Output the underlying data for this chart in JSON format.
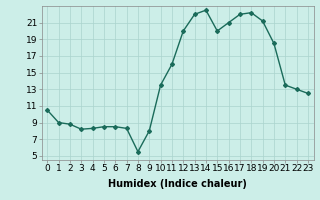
{
  "x": [
    0,
    1,
    2,
    3,
    4,
    5,
    6,
    7,
    8,
    9,
    10,
    11,
    12,
    13,
    14,
    15,
    16,
    17,
    18,
    19,
    20,
    21,
    22,
    23
  ],
  "y": [
    10.5,
    9.0,
    8.8,
    8.2,
    8.3,
    8.5,
    8.5,
    8.3,
    5.5,
    8.0,
    13.5,
    16.0,
    20.0,
    22.0,
    22.5,
    20.0,
    21.0,
    22.0,
    22.2,
    21.2,
    18.5,
    13.5,
    13.0,
    12.5
  ],
  "line_color": "#1a6b5a",
  "bg_color": "#cceee8",
  "grid_color": "#aad4ce",
  "xlabel": "Humidex (Indice chaleur)",
  "yticks": [
    5,
    7,
    9,
    11,
    13,
    15,
    17,
    19,
    21
  ],
  "xticks": [
    0,
    1,
    2,
    3,
    4,
    5,
    6,
    7,
    8,
    9,
    10,
    11,
    12,
    13,
    14,
    15,
    16,
    17,
    18,
    19,
    20,
    21,
    22,
    23
  ],
  "xtick_labels": [
    "0",
    "1",
    "2",
    "3",
    "4",
    "5",
    "6",
    "7",
    "8",
    "9",
    "10",
    "11",
    "12",
    "13",
    "14",
    "15",
    "16",
    "17",
    "18",
    "19",
    "20",
    "21",
    "22",
    "23"
  ],
  "ylim": [
    4.5,
    23.0
  ],
  "xlim": [
    -0.5,
    23.5
  ],
  "marker": "D",
  "marker_size": 2.0,
  "line_width": 1.0,
  "xlabel_fontsize": 7,
  "tick_fontsize": 6.5
}
